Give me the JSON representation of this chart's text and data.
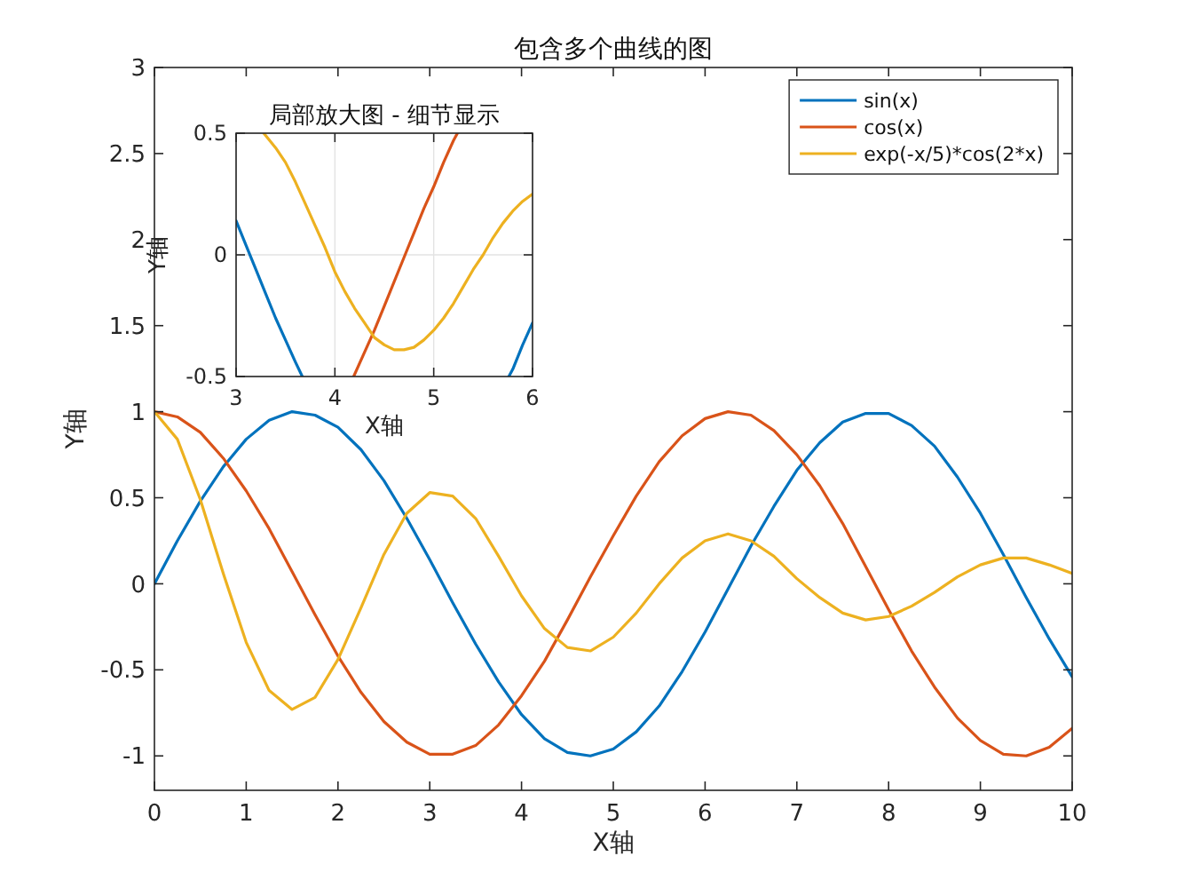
{
  "chart_data": [
    {
      "type": "line",
      "title": "包含多个曲线的图",
      "xlabel": "X轴",
      "ylabel": "Y轴",
      "xlim": [
        0,
        10
      ],
      "xticks": [
        0,
        1,
        2,
        3,
        4,
        5,
        6,
        7,
        8,
        9,
        10
      ],
      "ylim": [
        -1.2,
        3
      ],
      "yticks": [
        -1,
        -0.5,
        0,
        0.5,
        1,
        1.5,
        2,
        2.5,
        3
      ],
      "legend": "top right",
      "x": [
        0,
        0.25,
        0.5,
        0.75,
        1,
        1.25,
        1.5,
        1.75,
        2,
        2.25,
        2.5,
        2.75,
        3,
        3.25,
        3.5,
        3.75,
        4,
        4.25,
        4.5,
        4.75,
        5,
        5.25,
        5.5,
        5.75,
        6,
        6.25,
        6.5,
        6.75,
        7,
        7.25,
        7.5,
        7.75,
        8,
        8.25,
        8.5,
        8.75,
        9,
        9.25,
        9.5,
        9.75,
        10
      ],
      "series": [
        {
          "name": "sin(x)",
          "color": "#0072bd",
          "values": [
            0,
            0.25,
            0.48,
            0.68,
            0.84,
            0.95,
            1.0,
            0.98,
            0.91,
            0.78,
            0.6,
            0.38,
            0.14,
            -0.11,
            -0.35,
            -0.57,
            -0.76,
            -0.9,
            -0.98,
            -1.0,
            -0.96,
            -0.86,
            -0.71,
            -0.51,
            -0.28,
            -0.03,
            0.22,
            0.45,
            0.66,
            0.82,
            0.94,
            0.99,
            0.99,
            0.92,
            0.8,
            0.62,
            0.41,
            0.17,
            -0.08,
            -0.32,
            -0.54
          ]
        },
        {
          "name": "cos(x)",
          "color": "#d95319",
          "values": [
            1,
            0.97,
            0.88,
            0.73,
            0.54,
            0.32,
            0.07,
            -0.18,
            -0.42,
            -0.63,
            -0.8,
            -0.92,
            -0.99,
            -0.99,
            -0.94,
            -0.82,
            -0.65,
            -0.45,
            -0.21,
            0.04,
            0.28,
            0.51,
            0.71,
            0.86,
            0.96,
            1.0,
            0.98,
            0.89,
            0.75,
            0.57,
            0.35,
            0.1,
            -0.15,
            -0.39,
            -0.6,
            -0.78,
            -0.91,
            -0.99,
            -1.0,
            -0.95,
            -0.84
          ]
        },
        {
          "name": "exp(-x/5)*cos(2*x)",
          "color": "#edb120",
          "values": [
            1,
            0.84,
            0.49,
            0.06,
            -0.34,
            -0.62,
            -0.73,
            -0.66,
            -0.44,
            -0.14,
            0.17,
            0.41,
            0.53,
            0.51,
            0.38,
            0.16,
            -0.07,
            -0.26,
            -0.37,
            -0.39,
            -0.31,
            -0.17,
            0.0,
            0.15,
            0.25,
            0.29,
            0.25,
            0.16,
            0.03,
            -0.08,
            -0.17,
            -0.21,
            -0.19,
            -0.13,
            -0.05,
            0.04,
            0.11,
            0.15,
            0.15,
            0.11,
            0.06
          ]
        }
      ]
    },
    {
      "type": "line",
      "title": "局部放大图 - 细节显示",
      "xlabel": "X轴",
      "ylabel": "Y轴",
      "xlim": [
        3,
        6
      ],
      "xticks": [
        3,
        4,
        5,
        6
      ],
      "ylim": [
        -0.5,
        0.5
      ],
      "yticks": [
        -0.5,
        0,
        0.5
      ],
      "grid": true,
      "series": [
        {
          "color": "#0072bd",
          "x": [
            3,
            3.1,
            3.2,
            3.3,
            3.4,
            3.5,
            3.6,
            3.67
          ],
          "values": [
            0.14,
            0.04,
            -0.06,
            -0.16,
            -0.26,
            -0.35,
            -0.44,
            -0.5
          ]
        },
        {
          "color": "#0072bd",
          "x": [
            5.76,
            5.8,
            5.9,
            6
          ],
          "values": [
            -0.5,
            -0.47,
            -0.37,
            -0.28
          ]
        },
        {
          "color": "#d95319",
          "x": [
            4.19,
            4.3,
            4.4,
            4.5,
            4.6,
            4.7,
            4.8,
            4.9,
            5,
            5.1,
            5.2,
            5.24
          ],
          "values": [
            -0.5,
            -0.4,
            -0.31,
            -0.21,
            -0.11,
            -0.01,
            0.09,
            0.19,
            0.28,
            0.38,
            0.47,
            0.5
          ]
        },
        {
          "color": "#edb120",
          "x": [
            3.28,
            3.4,
            3.5,
            3.6,
            3.7,
            3.8,
            3.9,
            4,
            4.1,
            4.2,
            4.3,
            4.4,
            4.5,
            4.6,
            4.7,
            4.8,
            4.9,
            5,
            5.1,
            5.2,
            5.3,
            5.4,
            5.5,
            5.6,
            5.7,
            5.8,
            5.9,
            6
          ],
          "values": [
            0.5,
            0.44,
            0.38,
            0.3,
            0.21,
            0.12,
            0.03,
            -0.07,
            -0.15,
            -0.22,
            -0.28,
            -0.34,
            -0.37,
            -0.39,
            -0.39,
            -0.38,
            -0.35,
            -0.31,
            -0.26,
            -0.2,
            -0.13,
            -0.06,
            0.0,
            0.07,
            0.13,
            0.18,
            0.22,
            0.25
          ]
        }
      ]
    }
  ]
}
